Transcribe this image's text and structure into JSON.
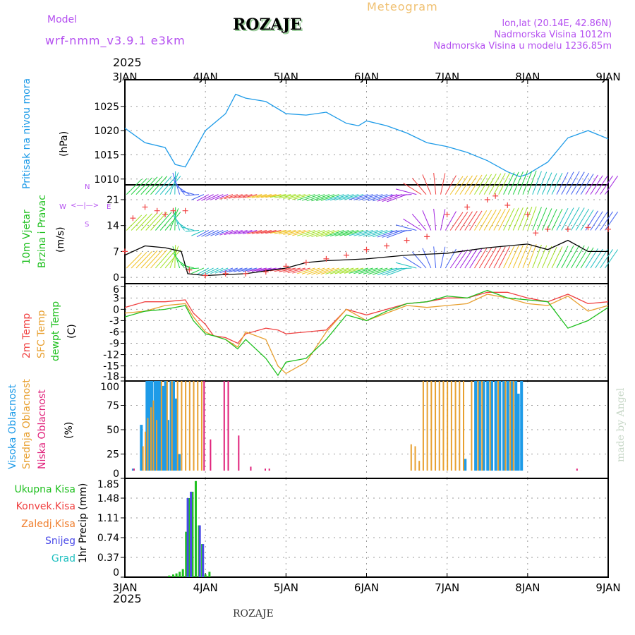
{
  "header": {
    "title": "ROZAJE",
    "meteogram": "Meteogram",
    "model_label": "Model",
    "model": "wrf-nmm_v3.9.1 e3km",
    "lonlat": "lon,lat (20.14E, 42.86N)",
    "elev": "Nadmorska Visina 1012m",
    "model_elev": "Nadmorska Visina u modelu 1236.85m",
    "year": "2025",
    "footer": "ROZAJE",
    "credit": "made by Angel"
  },
  "labels": {
    "pressure": "Pritisak na nivou mora",
    "pressure_unit": "(hPa)",
    "wind1": "10m Vjetar",
    "wind2": "Brzina i Pravac",
    "wind_unit": "(m/s)",
    "t1": "2m Temp",
    "t2": "SFC Temp",
    "t3": "dewpt Temp",
    "t_unit": "(C)",
    "c1": "Visoka Oblacnost",
    "c2": "Srednja Oblacnost",
    "c3": "Niska Oblacnost",
    "c_unit": "(%)",
    "p1": "Ukupna Kisa",
    "p2": "Konvek.Kisa",
    "p3": "Zaledj.Kisa",
    "p4": "Snijeg",
    "p5": "Grad",
    "p_unit": "1hr Precip (mm)",
    "compass": {
      "n": "N",
      "s": "S",
      "w": "W",
      "e": "E"
    }
  },
  "chart_data": [
    {
      "type": "line",
      "name": "pressure",
      "ylabel": "(hPa)",
      "ylim": [
        1008.8,
        1030.5
      ],
      "yticks": [
        1010,
        1015,
        1020,
        1025
      ],
      "x_days": [
        0,
        0.25,
        0.5,
        0.625,
        0.75,
        1,
        1.25,
        1.375,
        1.5,
        1.75,
        2,
        2.25,
        2.5,
        2.75,
        2.9,
        3,
        3.25,
        3.5,
        3.75,
        4,
        4.25,
        4.5,
        4.75,
        4.9,
        5,
        5.25,
        5.5,
        5.75,
        6
      ],
      "values": [
        1020.5,
        1017.5,
        1016.5,
        1013,
        1012.5,
        1020,
        1023.5,
        1027.5,
        1026.7,
        1026,
        1023.5,
        1023.2,
        1023.8,
        1021.5,
        1021,
        1022,
        1021,
        1019.5,
        1017.5,
        1016.7,
        1015.5,
        1013.8,
        1011.5,
        1010.5,
        1011,
        1013.5,
        1018.5,
        1020,
        1018.3
      ],
      "color": "#1e9be8"
    },
    {
      "type": "line",
      "name": "wind",
      "ylabel": "(m/s)",
      "ylim": [
        -1.7,
        25
      ],
      "yticks": [
        0,
        7,
        14,
        21
      ],
      "speed": {
        "x_days": [
          0,
          0.25,
          0.5,
          0.7,
          0.78,
          1,
          1.5,
          2,
          2.25,
          2.5,
          3,
          3.5,
          4,
          4.5,
          5,
          5.25,
          5.5,
          5.75,
          6
        ],
        "values": [
          6,
          8.5,
          8,
          7,
          1,
          0.5,
          1,
          2.5,
          4,
          4.5,
          5,
          6,
          6.5,
          8,
          9,
          7.5,
          10,
          7,
          7
        ]
      },
      "gust": {
        "x_days": [
          0,
          0.1,
          0.25,
          0.4,
          0.5,
          0.6,
          0.75,
          0.8,
          1,
          1.25,
          1.5,
          1.75,
          2,
          2.25,
          2.5,
          2.75,
          3,
          3.25,
          3.5,
          3.75,
          4,
          4.25,
          4.5,
          4.6,
          4.75,
          5,
          5.1,
          5.25,
          5.5,
          5.75,
          6
        ],
        "values": [
          7,
          16,
          19,
          18,
          17,
          18,
          18,
          2,
          0.5,
          1,
          1,
          1.5,
          3,
          4,
          5,
          6,
          7.5,
          8.5,
          10,
          11,
          17,
          19,
          21,
          22,
          19.5,
          17,
          12,
          13,
          13,
          13.5,
          13
        ]
      },
      "direction_deg_x_days": [
        0,
        0.5,
        1,
        1.5,
        2,
        2.5,
        3,
        3.5,
        4,
        4.5,
        5,
        5.5,
        6
      ],
      "direction_deg": [
        225,
        220,
        60,
        75,
        80,
        70,
        75,
        70,
        215,
        210,
        200,
        210,
        215
      ]
    },
    {
      "type": "line",
      "name": "temperature",
      "ylabel": "(C)",
      "ylim": [
        -19,
        6.8
      ],
      "yticks": [
        6,
        3,
        0,
        -3,
        -6,
        -9,
        -12,
        -15,
        -18
      ],
      "x_days": [
        0,
        0.25,
        0.5,
        0.75,
        0.85,
        1,
        1.1,
        1.25,
        1.4,
        1.5,
        1.75,
        1.9,
        2,
        2.25,
        2.5,
        2.75,
        3,
        3.25,
        3.5,
        3.75,
        4,
        4.25,
        4.5,
        4.75,
        5,
        5.25,
        5.5,
        5.75,
        6
      ],
      "series": [
        {
          "name": "2m Temp",
          "color": "#f04040",
          "values": [
            0.5,
            2,
            2,
            2.5,
            -1,
            -4,
            -7,
            -7.5,
            -9,
            -6.5,
            -5,
            -5.5,
            -6.5,
            -6,
            -5.5,
            0,
            -1.5,
            0,
            1.5,
            2,
            3,
            3,
            4.5,
            4.5,
            3,
            2,
            4,
            1.5,
            2
          ]
        },
        {
          "name": "SFC Temp",
          "color": "#e8a030",
          "values": [
            -1,
            -0.5,
            1,
            1.5,
            -2,
            -6,
            -7,
            -8,
            -10,
            -6,
            -8,
            -15,
            -17,
            -14,
            -6,
            0,
            -3,
            -1,
            1,
            0.5,
            1,
            1.5,
            4,
            3,
            1.5,
            1,
            3.5,
            -0.5,
            1
          ]
        },
        {
          "name": "dewpt Temp",
          "color": "#20c020",
          "values": [
            -2,
            -0.5,
            0,
            1,
            -3,
            -6.5,
            -7,
            -8,
            -10.5,
            -8,
            -13,
            -17.5,
            -14,
            -13,
            -8,
            -1.5,
            -3,
            -0.5,
            1.5,
            2,
            3.5,
            3,
            5,
            3,
            2.5,
            2,
            -5,
            -3,
            0.5
          ]
        }
      ]
    },
    {
      "type": "bar",
      "name": "cloud",
      "ylabel": "(%)",
      "ylim": [
        0,
        100
      ],
      "yticks": [
        0,
        25,
        50,
        75,
        100
      ],
      "series": [
        {
          "name": "Visoka Oblacnost",
          "color": "#1e9be8",
          "x_days": [
            0.1,
            0.2,
            0.27,
            0.3,
            0.33,
            0.37,
            0.4,
            0.43,
            0.47,
            0.5,
            0.53,
            0.57,
            0.6,
            0.63,
            0.67,
            4.22,
            4.35,
            4.4,
            4.45,
            4.5,
            4.55,
            4.6,
            4.65,
            4.7,
            4.75,
            4.8,
            4.85,
            4.88,
            4.92
          ],
          "values": [
            10,
            55,
            100,
            100,
            100,
            100,
            100,
            100,
            95,
            100,
            60,
            100,
            100,
            82,
            25,
            20,
            100,
            100,
            100,
            100,
            100,
            100,
            100,
            100,
            100,
            100,
            100,
            87,
            100
          ]
        },
        {
          "name": "Srednja Oblacnost",
          "color": "#e8a030",
          "x_days": [
            0.22,
            0.25,
            0.28,
            0.32,
            0.35,
            0.39,
            0.45,
            0.52,
            0.58,
            0.65,
            0.7,
            0.75,
            0.8,
            0.85,
            0.9,
            0.95,
            3.55,
            3.6,
            3.65,
            3.7,
            3.75,
            3.8,
            3.85,
            3.9,
            3.95,
            4.0,
            4.05,
            4.1,
            4.15,
            4.2,
            4.3,
            4.38,
            4.43,
            4.53,
            4.63,
            4.72,
            4.78,
            4.82
          ],
          "values": [
            33,
            48,
            62,
            73,
            80,
            60,
            100,
            100,
            100,
            100,
            100,
            100,
            100,
            100,
            100,
            100,
            35,
            33,
            18,
            100,
            100,
            100,
            100,
            100,
            100,
            100,
            100,
            100,
            100,
            100,
            100,
            100,
            100,
            100,
            100,
            100,
            100,
            100
          ]
        },
        {
          "name": "Niska Oblacnost",
          "color": "#e0207a",
          "x_days": [
            0.1,
            0.97,
            1.05,
            1.22,
            1.27,
            1.4,
            1.5,
            1.55,
            1.73,
            1.78,
            1.9,
            3.65,
            5.5,
            5.6,
            5.65
          ],
          "values": [
            10,
            100,
            40,
            100,
            100,
            44,
            8,
            12,
            10,
            10,
            8,
            8,
            8,
            10,
            8
          ]
        }
      ]
    },
    {
      "type": "bar",
      "name": "precip",
      "ylabel": "1hr Precip (mm)",
      "ylim": [
        0,
        1.85
      ],
      "yticks": [
        0,
        0.37,
        0.74,
        1.11,
        1.48,
        1.85
      ],
      "series": [
        {
          "name": "Ukupna Kisa",
          "color": "#20c020",
          "x_days": [
            0.55,
            0.6,
            0.64,
            0.68,
            0.72,
            0.76,
            0.8,
            0.84,
            0.88,
            0.92,
            0.96,
            1.0,
            1.05
          ],
          "values": [
            0.03,
            0.05,
            0.07,
            0.1,
            0.15,
            0.85,
            1.48,
            1.6,
            1.8,
            0.97,
            0.62,
            0.05,
            0.1
          ]
        },
        {
          "name": "Snijeg",
          "color": "#4a4ae8",
          "x_days": [
            0.78,
            0.82,
            0.93,
            0.97
          ],
          "values": [
            1.48,
            1.6,
            0.97,
            0.62
          ]
        }
      ]
    }
  ],
  "x_axis": {
    "ticks": [
      "3JAN",
      "4JAN",
      "5JAN",
      "6JAN",
      "7JAN",
      "8JAN",
      "9JAN"
    ]
  }
}
